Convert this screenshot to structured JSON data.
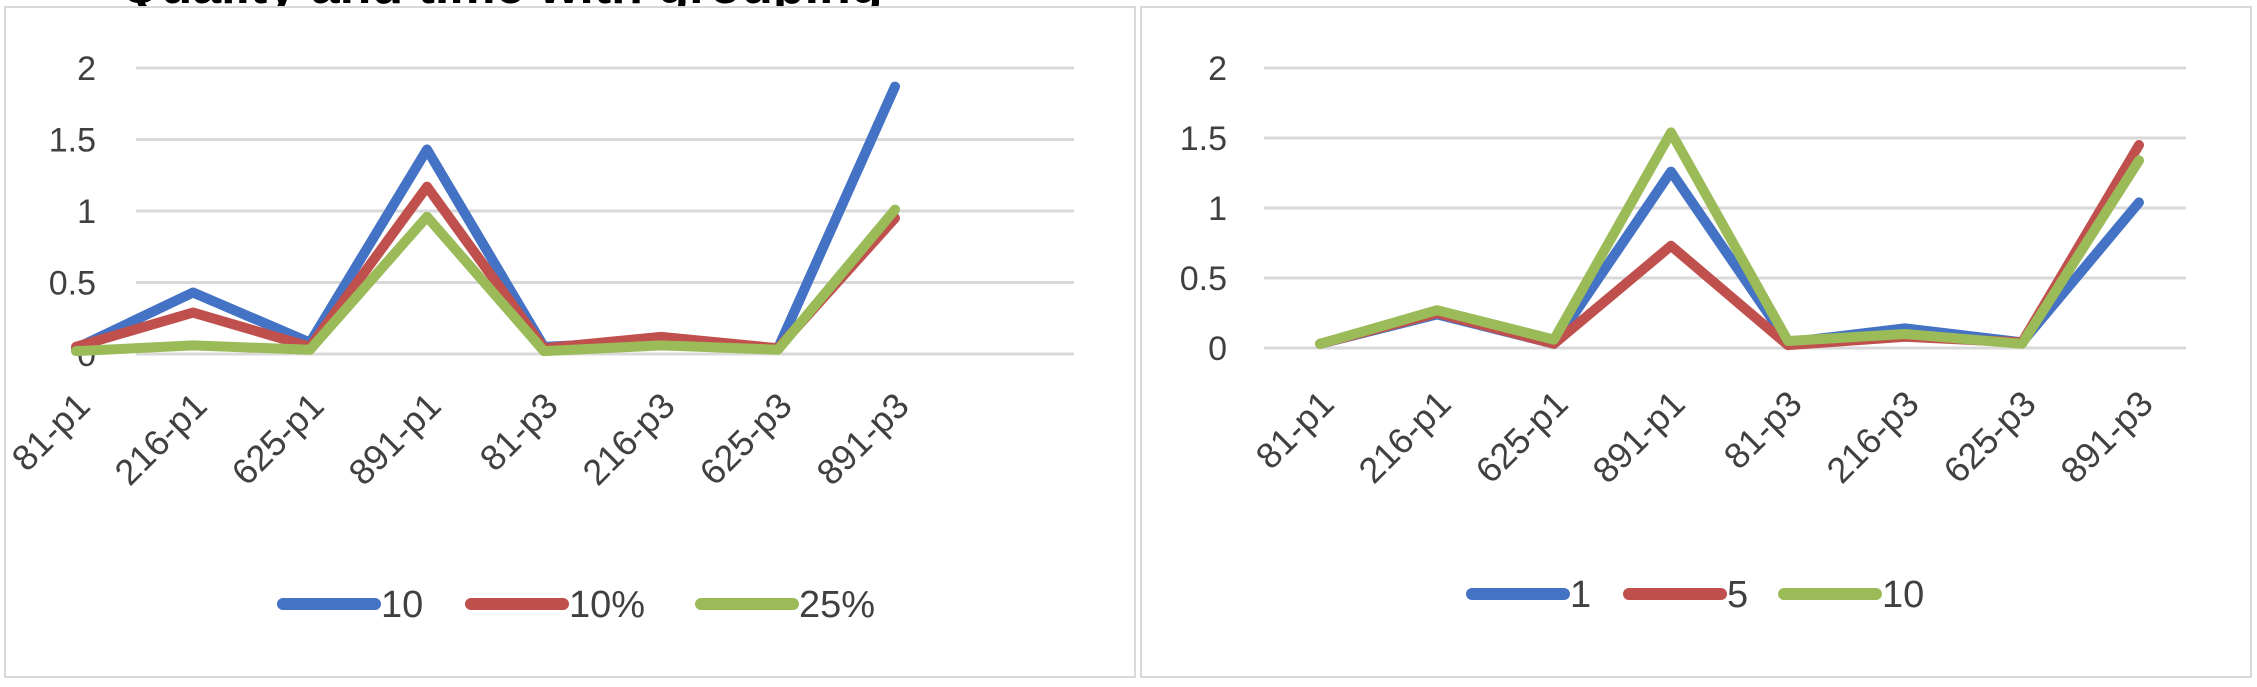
{
  "header_fragment": "Quality and time with grouping",
  "chart_data": [
    {
      "type": "line",
      "categories": [
        "81-p1",
        "216-p1",
        "625-p1",
        "891-p1",
        "81-p3",
        "216-p3",
        "625-p3",
        "891-p3"
      ],
      "ylim": [
        0,
        2
      ],
      "yticks": [
        "0",
        "0.5",
        "1",
        "1.5",
        "2"
      ],
      "grid": true,
      "legend_position": "bottom",
      "series": [
        {
          "name": "10",
          "color": "#4472C4",
          "values": [
            0.04,
            0.43,
            0.08,
            1.43,
            0.05,
            0.09,
            0.04,
            1.87
          ]
        },
        {
          "name": "10%",
          "color": "#C0504D",
          "values": [
            0.05,
            0.29,
            0.05,
            1.17,
            0.04,
            0.12,
            0.04,
            0.95
          ]
        },
        {
          "name": "25%",
          "color": "#9BBB59",
          "values": [
            0.02,
            0.06,
            0.03,
            0.96,
            0.02,
            0.06,
            0.03,
            1.01
          ]
        }
      ]
    },
    {
      "type": "line",
      "categories": [
        "81-p1",
        "216-p1",
        "625-p1",
        "891-p1",
        "81-p3",
        "216-p3",
        "625-p3",
        "891-p3"
      ],
      "ylim": [
        0,
        2
      ],
      "yticks": [
        "0",
        "0.5",
        "1",
        "1.5",
        "2"
      ],
      "grid": true,
      "legend_position": "bottom",
      "series": [
        {
          "name": "1",
          "color": "#4472C4",
          "values": [
            0.03,
            0.24,
            0.03,
            1.26,
            0.04,
            0.14,
            0.04,
            1.04
          ]
        },
        {
          "name": "5",
          "color": "#C0504D",
          "values": [
            0.03,
            0.25,
            0.03,
            0.73,
            0.02,
            0.08,
            0.04,
            1.45
          ]
        },
        {
          "name": "10",
          "color": "#9BBB59",
          "values": [
            0.03,
            0.27,
            0.06,
            1.54,
            0.05,
            0.1,
            0.03,
            1.34
          ]
        }
      ]
    }
  ]
}
